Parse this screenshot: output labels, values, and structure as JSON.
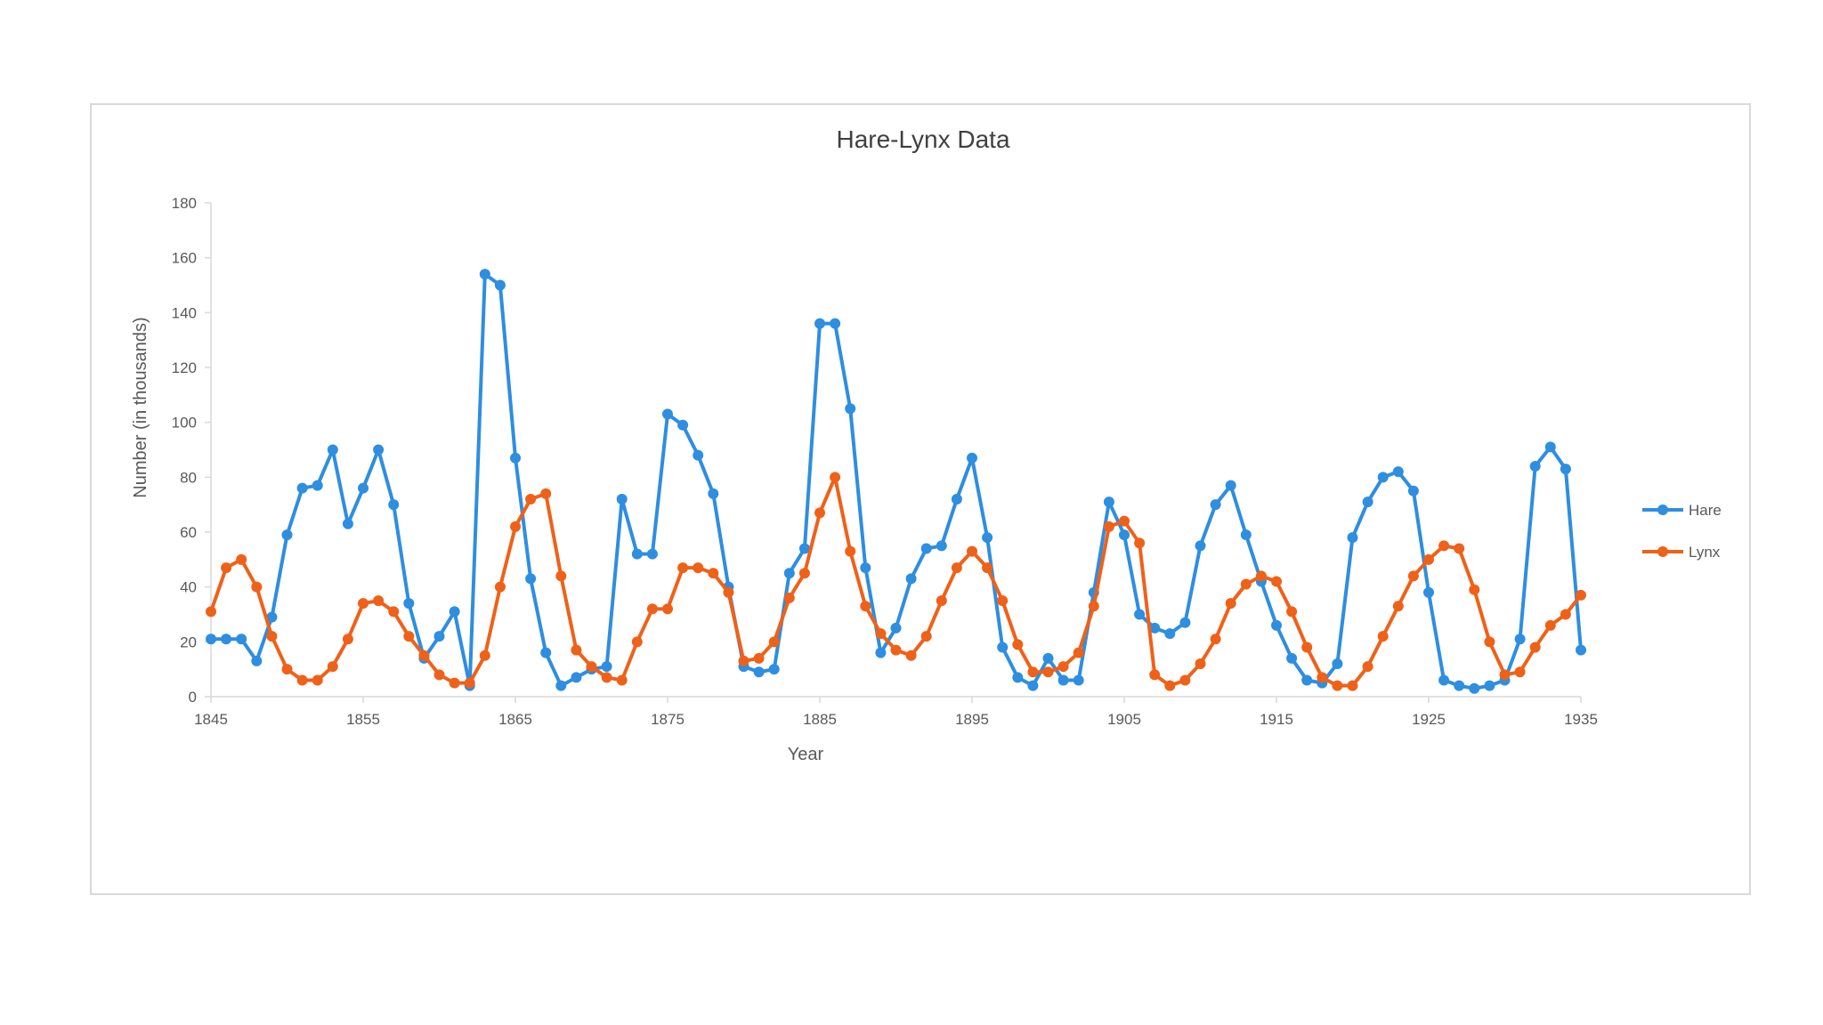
{
  "chart_data": {
    "type": "line",
    "title": "Hare-Lynx Data",
    "xlabel": "Year",
    "ylabel": "Number (in thousands)",
    "xlim": [
      1845,
      1935
    ],
    "ylim": [
      0,
      180
    ],
    "x_ticks": [
      "1845",
      "1855",
      "1865",
      "1875",
      "1885",
      "1895",
      "1905",
      "1915",
      "1925",
      "1935"
    ],
    "y_ticks": [
      "0",
      "20",
      "40",
      "60",
      "80",
      "100",
      "120",
      "140",
      "160",
      "180"
    ],
    "grid": false,
    "legend_position": "right",
    "series": [
      {
        "name": "Hare",
        "color": "#2e8ee0",
        "x": [
          1845,
          1846,
          1847,
          1848,
          1849,
          1850,
          1851,
          1852,
          1853,
          1854,
          1855,
          1856,
          1857,
          1858,
          1859,
          1860,
          1861,
          1862,
          1863,
          1864,
          1865,
          1866,
          1867,
          1868,
          1869,
          1870,
          1871,
          1872,
          1873,
          1874,
          1875,
          1876,
          1877,
          1878,
          1879,
          1880,
          1881,
          1882,
          1883,
          1884,
          1885,
          1886,
          1887,
          1888,
          1889,
          1890,
          1891,
          1892,
          1893,
          1894,
          1895,
          1896,
          1897,
          1898,
          1899,
          1900,
          1901,
          1902,
          1903,
          1904,
          1905,
          1906,
          1907,
          1908,
          1909,
          1910,
          1911,
          1912,
          1913,
          1914,
          1915,
          1916,
          1917,
          1918,
          1919,
          1920,
          1921,
          1922,
          1923,
          1924,
          1925,
          1926,
          1927,
          1928,
          1929,
          1930,
          1931,
          1932,
          1933,
          1934,
          1935
        ],
        "values": [
          21,
          21,
          21,
          13,
          29,
          59,
          76,
          77,
          90,
          63,
          76,
          90,
          70,
          34,
          14,
          22,
          31,
          4,
          154,
          150,
          87,
          43,
          16,
          4,
          7,
          10,
          11,
          72,
          52,
          52,
          103,
          99,
          88,
          74,
          40,
          11,
          9,
          10,
          45,
          54,
          136,
          136,
          105,
          47,
          16,
          25,
          43,
          54,
          55,
          72,
          87,
          58,
          18,
          7,
          4,
          14,
          6,
          6,
          38,
          71,
          59,
          30,
          25,
          23,
          27,
          55,
          70,
          77,
          59,
          42,
          26,
          14,
          6,
          5,
          12,
          58,
          71,
          80,
          82,
          75,
          38,
          6,
          4,
          3,
          4,
          6,
          21,
          84,
          91,
          83,
          17
        ]
      },
      {
        "name": "Lynx",
        "color": "#ef6119",
        "x": [
          1845,
          1846,
          1847,
          1848,
          1849,
          1850,
          1851,
          1852,
          1853,
          1854,
          1855,
          1856,
          1857,
          1858,
          1859,
          1860,
          1861,
          1862,
          1863,
          1864,
          1865,
          1866,
          1867,
          1868,
          1869,
          1870,
          1871,
          1872,
          1873,
          1874,
          1875,
          1876,
          1877,
          1878,
          1879,
          1880,
          1881,
          1882,
          1883,
          1884,
          1885,
          1886,
          1887,
          1888,
          1889,
          1890,
          1891,
          1892,
          1893,
          1894,
          1895,
          1896,
          1897,
          1898,
          1899,
          1900,
          1901,
          1902,
          1903,
          1904,
          1905,
          1906,
          1907,
          1908,
          1909,
          1910,
          1911,
          1912,
          1913,
          1914,
          1915,
          1916,
          1917,
          1918,
          1919,
          1920,
          1921,
          1922,
          1923,
          1924,
          1925,
          1926,
          1927,
          1928,
          1929,
          1930,
          1931,
          1932,
          1933,
          1934,
          1935
        ],
        "values": [
          31,
          47,
          50,
          40,
          22,
          10,
          6,
          6,
          11,
          21,
          34,
          35,
          31,
          22,
          15,
          8,
          5,
          5,
          15,
          40,
          62,
          72,
          74,
          44,
          17,
          11,
          7,
          6,
          20,
          32,
          32,
          47,
          47,
          45,
          38,
          13,
          14,
          20,
          36,
          45,
          67,
          80,
          53,
          33,
          23,
          17,
          15,
          22,
          35,
          47,
          53,
          47,
          35,
          19,
          9,
          9,
          11,
          16,
          33,
          62,
          64,
          56,
          8,
          4,
          6,
          12,
          21,
          34,
          41,
          44,
          42,
          31,
          18,
          7,
          4,
          4,
          11,
          22,
          33,
          44,
          50,
          55,
          54,
          39,
          20,
          8,
          9,
          18,
          26,
          30,
          37
        ]
      }
    ]
  }
}
